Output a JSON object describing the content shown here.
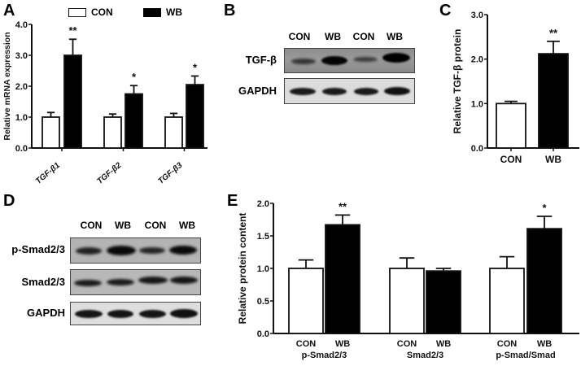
{
  "panels": {
    "A": "A",
    "B": "B",
    "C": "C",
    "D": "D",
    "E": "E"
  },
  "legend": {
    "con": "CON",
    "wb": "WB"
  },
  "blot_b": {
    "lanes": [
      "CON",
      "WB",
      "CON",
      "WB"
    ],
    "rows": [
      "TGF-β",
      "GAPDH"
    ]
  },
  "blot_d": {
    "lanes": [
      "CON",
      "WB",
      "CON",
      "WB"
    ],
    "rows": [
      "p-Smad2/3",
      "Smad2/3",
      "GAPDH"
    ]
  },
  "colors": {
    "con": "#ffffff",
    "wb": "#000000",
    "axis": "#111111"
  },
  "chart_data": [
    {
      "id": "A",
      "type": "bar",
      "title": "",
      "xlabel": "",
      "ylabel": "Relative mRNA expression",
      "ylim": [
        0,
        4.0
      ],
      "yticks": [
        "0.0",
        "1.0",
        "2.0",
        "3.0",
        "4.0"
      ],
      "categories": [
        "TGF-β1",
        "TGF-β2",
        "TGF-β3"
      ],
      "legend": [
        "CON",
        "WB"
      ],
      "legend_position": "top",
      "grid": false,
      "series": [
        {
          "name": "CON",
          "values": [
            1.0,
            1.0,
            1.0
          ],
          "errors": [
            0.15,
            0.1,
            0.12
          ]
        },
        {
          "name": "WB",
          "values": [
            3.0,
            1.75,
            2.05
          ],
          "errors": [
            0.52,
            0.27,
            0.28
          ]
        }
      ],
      "annotations": [
        "**",
        "*",
        "*"
      ]
    },
    {
      "id": "C",
      "type": "bar",
      "title": "",
      "xlabel": "",
      "ylabel": "Relative TGF-β protein",
      "ylim": [
        0,
        3.0
      ],
      "yticks": [
        "0.0",
        "1.0",
        "2.0",
        "3.0"
      ],
      "categories": [
        "CON",
        "WB"
      ],
      "grid": false,
      "series": [
        {
          "name": "Relative TGF-β protein",
          "values": [
            1.0,
            2.12
          ],
          "errors": [
            0.05,
            0.28
          ]
        }
      ],
      "annotations": [
        "",
        "**"
      ]
    },
    {
      "id": "E",
      "type": "bar",
      "title": "",
      "xlabel": "",
      "ylabel": "Relative protein content",
      "ylim": [
        0,
        2.0
      ],
      "yticks": [
        "0.0",
        "0.5",
        "1.0",
        "1.5",
        "2.0"
      ],
      "categories": [
        "p-Smad2/3",
        "Smad2/3",
        "p-Smad/Smad"
      ],
      "bar_labels": [
        "CON",
        "WB"
      ],
      "grid": false,
      "series": [
        {
          "name": "CON",
          "values": [
            1.0,
            1.0,
            1.0
          ],
          "errors": [
            0.13,
            0.16,
            0.18
          ]
        },
        {
          "name": "WB",
          "values": [
            1.67,
            0.96,
            1.61
          ],
          "errors": [
            0.15,
            0.04,
            0.19
          ]
        }
      ],
      "annotations": [
        "**",
        "",
        "*"
      ]
    }
  ]
}
